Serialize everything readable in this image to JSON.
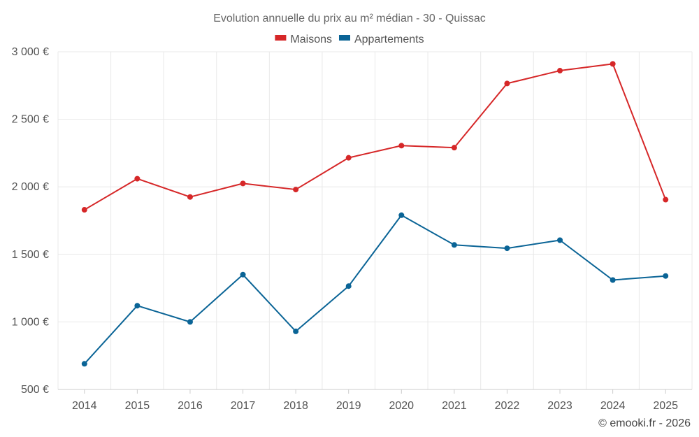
{
  "chart_data": {
    "type": "line",
    "title": "Evolution annuelle du prix au m² médian - 30 - Quissac",
    "categories": [
      "2014",
      "2015",
      "2016",
      "2017",
      "2018",
      "2019",
      "2020",
      "2021",
      "2022",
      "2023",
      "2024",
      "2025"
    ],
    "series": [
      {
        "name": "Maisons",
        "color": "#d62728",
        "values": [
          1830,
          2060,
          1925,
          2025,
          1980,
          2215,
          2305,
          2290,
          2765,
          2860,
          2910,
          1905
        ]
      },
      {
        "name": "Appartements",
        "color": "#0a6496",
        "values": [
          690,
          1120,
          1000,
          1350,
          930,
          1265,
          1790,
          1570,
          1545,
          1605,
          1310,
          1340
        ]
      }
    ],
    "ylim": [
      500,
      3000
    ],
    "yticks": [
      500,
      1000,
      1500,
      2000,
      2500,
      3000
    ],
    "ytick_labels": [
      "500 €",
      "1 000 €",
      "1 500 €",
      "2 000 €",
      "2 500 €",
      "3 000 €"
    ],
    "legend": "top-center",
    "grid": true
  },
  "credit": "© emooki.fr - 2026"
}
